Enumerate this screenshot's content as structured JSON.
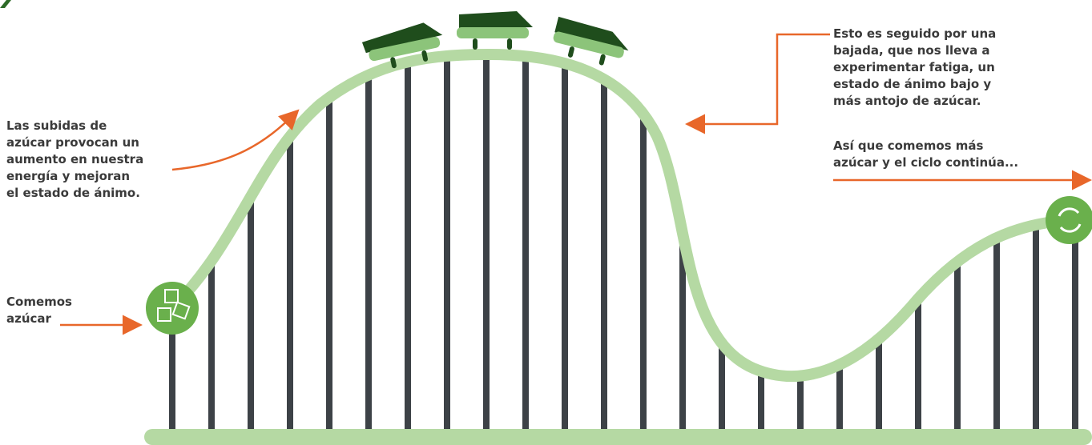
{
  "annotations": [
    {
      "lines": [
        "Las subidas de",
        "azúcar provocan un",
        "aumento en nuestra",
        "energía y mejoran",
        "el estado de ánimo."
      ]
    },
    {
      "lines": [
        "Comemos",
        "azúcar"
      ]
    },
    {
      "lines": [
        "Esto es seguido por una",
        "bajada, que nos lleva a",
        "experimentar fatiga, un",
        "estado de ánimo bajo y",
        "más antojo de azúcar."
      ]
    },
    {
      "lines": [
        "Así que comemos más",
        "azúcar y el ciclo continúa..."
      ]
    }
  ]
}
